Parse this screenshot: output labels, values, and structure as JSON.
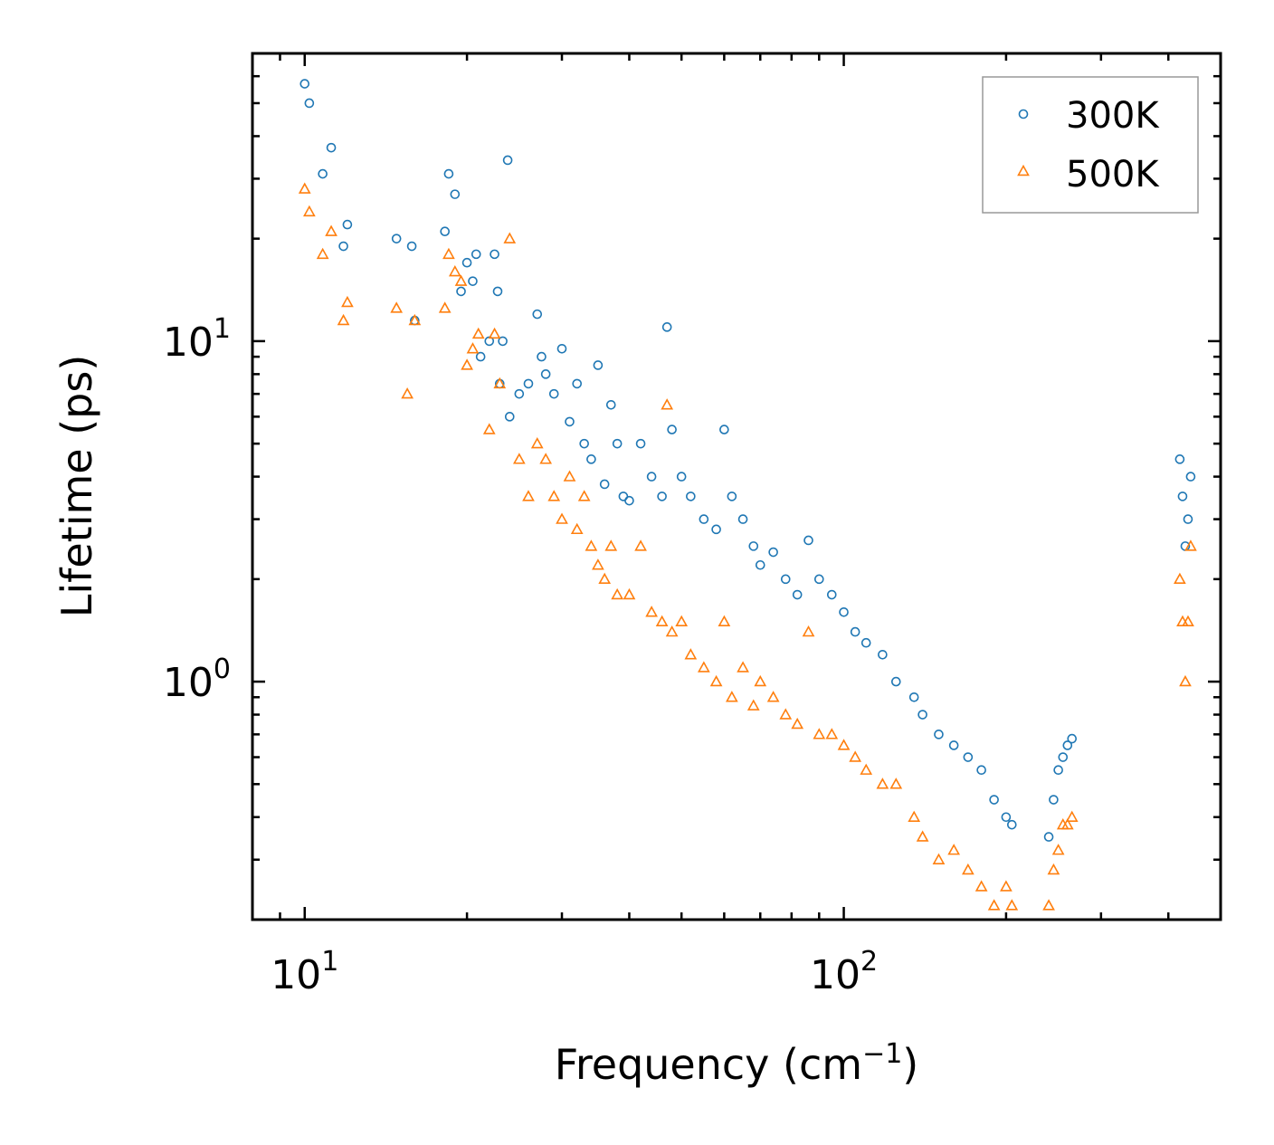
{
  "chart_data": {
    "type": "scatter",
    "title": "",
    "xlabel": "Frequency (cm",
    "xlabel_sup": "−1",
    "xlabel_close": ")",
    "ylabel": "Lifetime (ps)",
    "xscale": "log",
    "yscale": "log",
    "xlim": [
      8,
      500
    ],
    "ylim": [
      0.2,
      70
    ],
    "x_tick_labels": [
      {
        "base": "10",
        "exp": "1",
        "value": 10
      },
      {
        "base": "10",
        "exp": "2",
        "value": 100
      }
    ],
    "y_tick_labels": [
      {
        "base": "10",
        "exp": "0",
        "value": 1
      },
      {
        "base": "10",
        "exp": "1",
        "value": 10
      }
    ],
    "legend_position": "top-right",
    "series": [
      {
        "name": "300K",
        "marker": "circle",
        "color": "#1f77b4",
        "x": [
          10,
          10.2,
          10.8,
          11.2,
          11.8,
          12.0,
          14.8,
          15.8,
          16.0,
          18.2,
          18.5,
          19.0,
          19.5,
          20.0,
          20.5,
          20.8,
          21.2,
          22.0,
          22.5,
          22.8,
          23.0,
          23.3,
          23.8,
          24.0,
          25.0,
          26.0,
          27.0,
          27.5,
          28.0,
          29.0,
          30.0,
          31.0,
          32.0,
          33.0,
          34.0,
          35.0,
          36.0,
          37.0,
          38.0,
          39.0,
          40.0,
          42.0,
          44.0,
          46.0,
          47.0,
          48.0,
          50.0,
          52.0,
          55.0,
          58.0,
          60.0,
          62.0,
          65.0,
          68.0,
          70.0,
          74.0,
          78.0,
          82.0,
          86.0,
          90.0,
          95.0,
          100.0,
          105.0,
          110.0,
          118.0,
          125.0,
          135.0,
          140.0,
          150.0,
          160.0,
          170.0,
          180.0,
          190.0,
          200.0,
          205.0,
          240.0,
          245.0,
          250.0,
          255.0,
          260.0,
          265.0,
          420.0,
          425.0,
          430.0,
          435.0,
          440.0
        ],
        "y": [
          57,
          50,
          31,
          37,
          19,
          22,
          20,
          19,
          11.5,
          21,
          31,
          27,
          14,
          17,
          15,
          18,
          9,
          10,
          18,
          14,
          7.5,
          10,
          34,
          6,
          7,
          7.5,
          12,
          9,
          8,
          7,
          9.5,
          5.8,
          7.5,
          5,
          4.5,
          8.5,
          3.8,
          6.5,
          5,
          3.5,
          3.4,
          5,
          4,
          3.5,
          11,
          5.5,
          4,
          3.5,
          3.0,
          2.8,
          5.5,
          3.5,
          3.0,
          2.5,
          2.2,
          2.4,
          2.0,
          1.8,
          2.6,
          2.0,
          1.8,
          1.6,
          1.4,
          1.3,
          1.2,
          1.0,
          0.9,
          0.8,
          0.7,
          0.65,
          0.6,
          0.55,
          0.45,
          0.4,
          0.38,
          0.35,
          0.45,
          0.55,
          0.6,
          0.65,
          0.68,
          4.5,
          3.5,
          2.5,
          3.0,
          4.0
        ]
      },
      {
        "name": "500K",
        "marker": "triangle",
        "color": "#ff7f0e",
        "x": [
          10,
          10.2,
          10.8,
          11.2,
          11.8,
          12.0,
          14.8,
          15.5,
          16.0,
          18.2,
          18.5,
          19.0,
          19.5,
          20.0,
          20.5,
          21.0,
          22.0,
          22.5,
          23.0,
          24.0,
          25.0,
          26.0,
          27.0,
          28.0,
          29.0,
          30.0,
          31.0,
          32.0,
          33.0,
          34.0,
          35.0,
          36.0,
          37.0,
          38.0,
          40.0,
          42.0,
          44.0,
          46.0,
          47.0,
          48.0,
          50.0,
          52.0,
          55.0,
          58.0,
          60.0,
          62.0,
          65.0,
          68.0,
          70.0,
          74.0,
          78.0,
          82.0,
          86.0,
          90.0,
          95.0,
          100.0,
          105.0,
          110.0,
          118.0,
          125.0,
          135.0,
          140.0,
          150.0,
          160.0,
          170.0,
          180.0,
          190.0,
          200.0,
          205.0,
          240.0,
          245.0,
          250.0,
          255.0,
          260.0,
          265.0,
          420.0,
          425.0,
          430.0,
          435.0,
          440.0
        ],
        "y": [
          28,
          24,
          18,
          21,
          11.5,
          13,
          12.5,
          7,
          11.5,
          12.5,
          18,
          16,
          15,
          8.5,
          9.5,
          10.5,
          5.5,
          10.5,
          7.5,
          20,
          4.5,
          3.5,
          5,
          4.5,
          3.5,
          3.0,
          4,
          2.8,
          3.5,
          2.5,
          2.2,
          2.0,
          2.5,
          1.8,
          1.8,
          2.5,
          1.6,
          1.5,
          6.5,
          1.4,
          1.5,
          1.2,
          1.1,
          1.0,
          1.5,
          0.9,
          1.1,
          0.85,
          1.0,
          0.9,
          0.8,
          0.75,
          1.4,
          0.7,
          0.7,
          0.65,
          0.6,
          0.55,
          0.5,
          0.5,
          0.4,
          0.35,
          0.3,
          0.32,
          0.28,
          0.25,
          0.22,
          0.25,
          0.22,
          0.22,
          0.28,
          0.32,
          0.38,
          0.38,
          0.4,
          2.0,
          1.5,
          1.0,
          1.5,
          2.5
        ]
      }
    ]
  }
}
